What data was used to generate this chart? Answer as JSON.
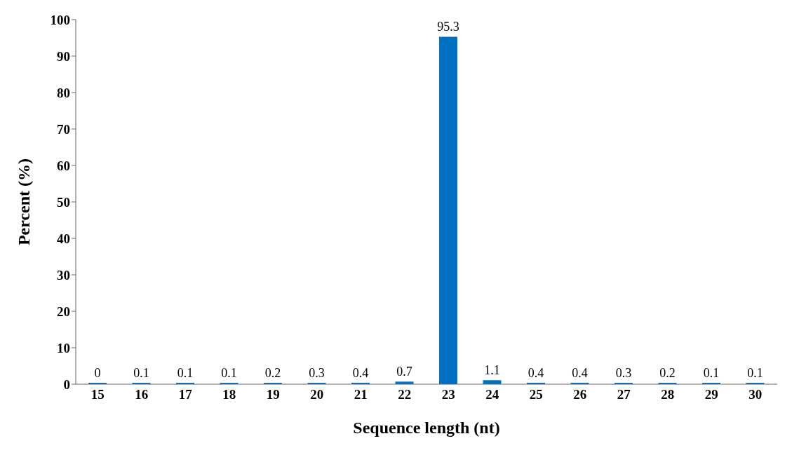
{
  "chart_data": {
    "type": "bar",
    "xlabel": "Sequence length (nt)",
    "ylabel": "Percent (%)",
    "categories": [
      "15",
      "16",
      "17",
      "18",
      "19",
      "20",
      "21",
      "22",
      "23",
      "24",
      "25",
      "26",
      "27",
      "28",
      "29",
      "30"
    ],
    "values": [
      0,
      0.1,
      0.1,
      0.1,
      0.2,
      0.3,
      0.4,
      0.7,
      95.3,
      1.1,
      0.4,
      0.4,
      0.3,
      0.2,
      0.1,
      0.1
    ],
    "color": "#0070c0",
    "ylim": [
      0,
      100
    ],
    "yticks": [
      0,
      10,
      20,
      30,
      40,
      50,
      60,
      70,
      80,
      90,
      100
    ],
    "data_labels": true,
    "grid": false,
    "legend": false
  }
}
